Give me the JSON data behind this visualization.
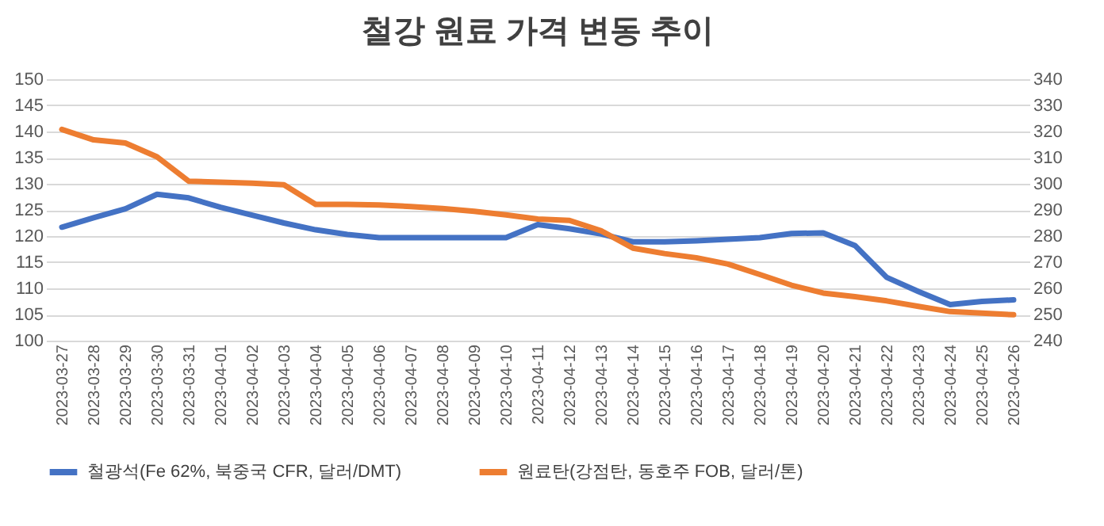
{
  "chart_data": {
    "type": "line",
    "title": "철강 원료 가격 변동 추이",
    "categories": [
      "2023-03-27",
      "2023-03-28",
      "2023-03-29",
      "2023-03-30",
      "2023-03-31",
      "2023-04-01",
      "2023-04-02",
      "2023-04-03",
      "2023-04-04",
      "2023-04-05",
      "2023-04-06",
      "2023-04-07",
      "2023-04-08",
      "2023-04-09",
      "2023-04-10",
      "2023-04-11",
      "2023-04-12",
      "2023-04-13",
      "2023-04-14",
      "2023-04-15",
      "2023-04-16",
      "2023-04-17",
      "2023-04-18",
      "2023-04-19",
      "2023-04-20",
      "2023-04-21",
      "2023-04-22",
      "2023-04-23",
      "2023-04-24",
      "2023-04-25",
      "2023-04-26"
    ],
    "series": [
      {
        "name": "철광석(Fe 62%, 북중국 CFR, 달러/DMT)",
        "color": "#4472c4",
        "values": [
          121.7,
          123.5,
          125.2,
          128.0,
          127.3,
          125.5,
          124.0,
          122.5,
          121.2,
          120.3,
          119.7,
          119.7,
          119.7,
          119.7,
          119.7,
          122.2,
          121.4,
          120.4,
          118.9,
          118.9,
          119.1,
          119.4,
          119.7,
          120.5,
          120.6,
          118.2,
          112.1,
          109.4,
          106.9,
          107.5,
          107.8
        ]
      },
      {
        "name": "원료탄(강점탄, 동호주 FOB, 달러/톤)",
        "color": "#ed7d31",
        "axis": "y2",
        "values": [
          320.8,
          316.8,
          315.6,
          310.3,
          301.0,
          300.6,
          300.2,
          299.6,
          292.1,
          292.1,
          291.9,
          291.3,
          290.5,
          289.5,
          288.1,
          286.5,
          286.0,
          282.0,
          275.4,
          273.3,
          271.7,
          269.3,
          265.3,
          261.2,
          258.2,
          256.8,
          255.2,
          253.1,
          251.1,
          250.5,
          249.9
        ]
      }
    ],
    "ylim": [
      100,
      150
    ],
    "yticks": [
      100,
      105,
      110,
      115,
      120,
      125,
      130,
      135,
      140,
      145,
      150
    ],
    "y2lim": [
      240,
      340
    ],
    "y2ticks": [
      240,
      250,
      260,
      270,
      280,
      290,
      300,
      310,
      320,
      330,
      340
    ],
    "grid": "y",
    "legend": "bottom",
    "marker": "none",
    "line_style": "solid"
  }
}
